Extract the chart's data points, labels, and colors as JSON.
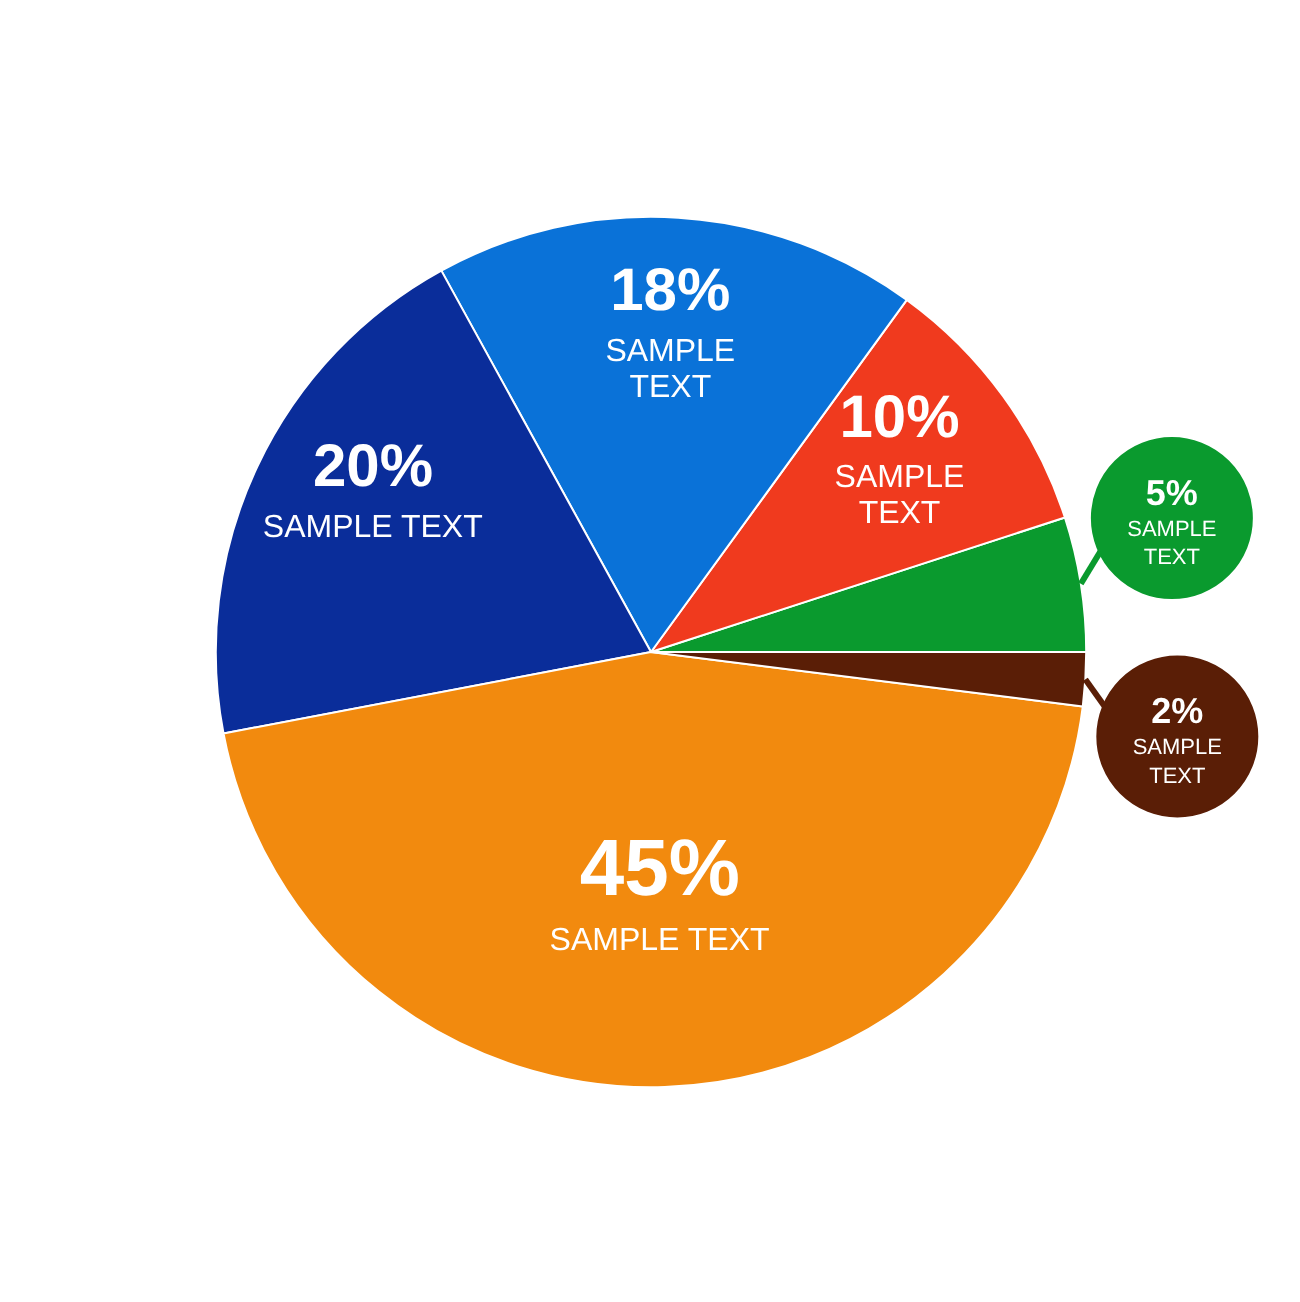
{
  "chart_data": {
    "type": "pie",
    "categories": [
      "SAMPLE TEXT",
      "SAMPLE TEXT",
      "SAMPLE TEXT",
      "SAMPLE TEXT",
      "SAMPLE TEXT",
      "SAMPLE TEXT"
    ],
    "values": [
      5,
      10,
      18,
      20,
      45,
      2
    ],
    "value_labels": [
      "5%",
      "10%",
      "18%",
      "20%",
      "45%",
      "2%"
    ],
    "colors": [
      "#0a9a2e",
      "#f03a1e",
      "#0a72d8",
      "#0a2d9a",
      "#f28a0e",
      "#5a1e06"
    ]
  }
}
